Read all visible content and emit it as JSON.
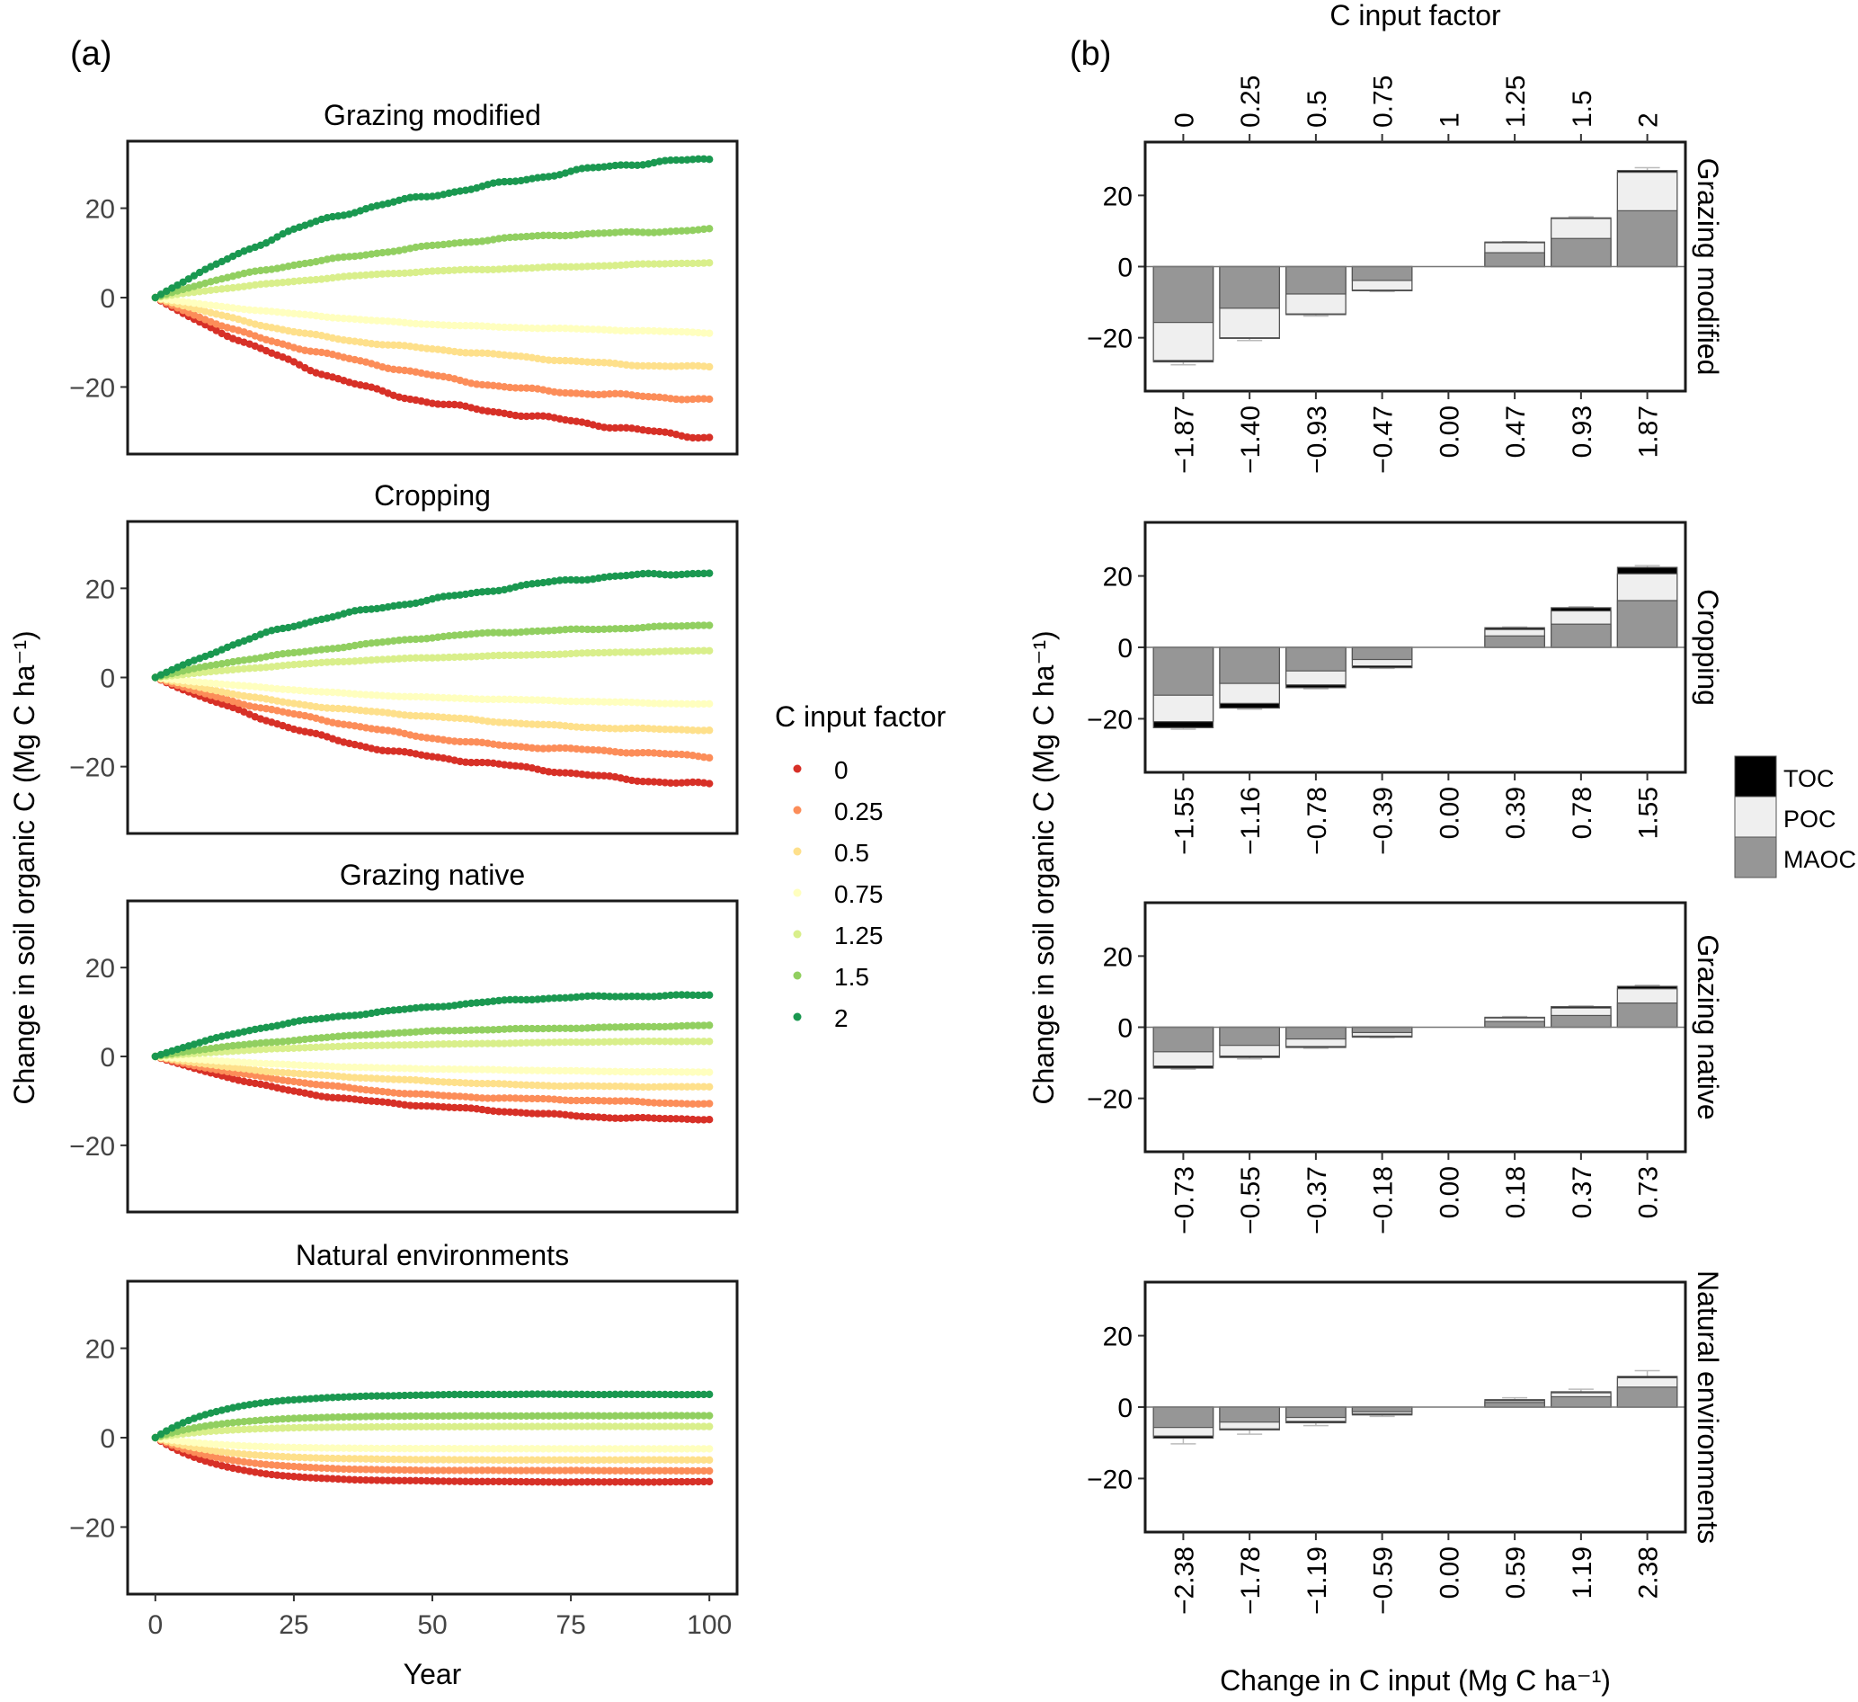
{
  "figure": {
    "panel_a_label": "(a)",
    "panel_b_label": "(b)"
  },
  "chart_data": [
    {
      "type": "scatter",
      "panel": "a",
      "xlabel": "Year",
      "ylabel": "Change in soil organic C (Mg C  ha⁻¹)",
      "xlim": [
        -5,
        105
      ],
      "ylim": [
        -35,
        35
      ],
      "xticks": [
        0,
        25,
        50,
        75,
        100
      ],
      "yticks": [
        -20,
        0,
        20
      ],
      "grid": false,
      "legend": {
        "title": "C input factor",
        "placement": "right",
        "entries": [
          {
            "label": "0",
            "color": "#d73027"
          },
          {
            "label": "0.25",
            "color": "#fc8d59"
          },
          {
            "label": "0.5",
            "color": "#fee08b"
          },
          {
            "label": "0.75",
            "color": "#ffffbf"
          },
          {
            "label": "1.25",
            "color": "#d9ef8b"
          },
          {
            "label": "1.5",
            "color": "#91cf60"
          },
          {
            "label": "2",
            "color": "#1a9850"
          }
        ]
      },
      "years": {
        "start": 0,
        "end": 100,
        "step": 1
      },
      "facets": [
        {
          "title": "Grazing modified",
          "shape": "slow",
          "series": [
            {
              "name": "0",
              "end_value": -30.8
            },
            {
              "name": "0.25",
              "end_value": -23.2
            },
            {
              "name": "0.5",
              "end_value": -15.5
            },
            {
              "name": "0.75",
              "end_value": -7.8
            },
            {
              "name": "1.25",
              "end_value": 7.7
            },
            {
              "name": "1.5",
              "end_value": 15.4
            },
            {
              "name": "2",
              "end_value": 30.8
            }
          ]
        },
        {
          "title": "Cropping",
          "shape": "slow",
          "series": [
            {
              "name": "0",
              "end_value": -23.7
            },
            {
              "name": "0.25",
              "end_value": -17.8
            },
            {
              "name": "0.5",
              "end_value": -11.9
            },
            {
              "name": "0.75",
              "end_value": -5.9
            },
            {
              "name": "1.25",
              "end_value": 5.9
            },
            {
              "name": "1.5",
              "end_value": 11.8
            },
            {
              "name": "2",
              "end_value": 23.7
            }
          ]
        },
        {
          "title": "Grazing native",
          "shape": "medium",
          "series": [
            {
              "name": "0",
              "end_value": -14.1
            },
            {
              "name": "0.25",
              "end_value": -10.6
            },
            {
              "name": "0.5",
              "end_value": -7.0
            },
            {
              "name": "0.75",
              "end_value": -3.5
            },
            {
              "name": "1.25",
              "end_value": 3.4
            },
            {
              "name": "1.5",
              "end_value": 6.9
            },
            {
              "name": "2",
              "end_value": 14.0
            }
          ]
        },
        {
          "title": "Natural environments",
          "shape": "fast",
          "series": [
            {
              "name": "0",
              "end_value": -9.9
            },
            {
              "name": "0.25",
              "end_value": -7.4
            },
            {
              "name": "0.5",
              "end_value": -5.0
            },
            {
              "name": "0.75",
              "end_value": -2.5
            },
            {
              "name": "1.25",
              "end_value": 2.5
            },
            {
              "name": "1.5",
              "end_value": 4.9
            },
            {
              "name": "2",
              "end_value": 9.7
            }
          ]
        }
      ]
    },
    {
      "type": "bar",
      "panel": "b",
      "stacked": true,
      "top_axis_label": "C input factor",
      "xlabel": "Change in C input (Mg C  ha⁻¹)",
      "ylabel": "Change in soil organic C (Mg C  ha⁻¹)",
      "ylim": [
        -35,
        35
      ],
      "yticks": [
        -20,
        0,
        20
      ],
      "grid": false,
      "categories": [
        "0",
        "0.25",
        "0.5",
        "0.75",
        "1",
        "1.25",
        "1.5",
        "2"
      ],
      "legend": {
        "placement": "right",
        "entries": [
          {
            "label": "TOC",
            "color": "#000000"
          },
          {
            "label": "POC",
            "color": "#efefef"
          },
          {
            "label": "MAOC",
            "color": "#969696"
          }
        ]
      },
      "facets": [
        {
          "title": "Grazing modified",
          "bottom_tick_labels": [
            "−1.87",
            "−1.40",
            "−0.93",
            "−0.47",
            "0.00",
            "0.47",
            "0.93",
            "1.87"
          ],
          "series": [
            {
              "name": "MAOC",
              "values": [
                -15.7,
                -11.7,
                -7.7,
                -3.9,
                0,
                3.9,
                7.9,
                15.7
              ]
            },
            {
              "name": "POC",
              "values": [
                -26.4,
                -20.0,
                -13.3,
                -6.6,
                0,
                6.7,
                13.5,
                26.5
              ]
            },
            {
              "name": "TOC",
              "values": [
                -26.8,
                -20.2,
                -13.5,
                -6.8,
                0,
                6.9,
                13.7,
                27.0
              ]
            }
          ],
          "error_top": [
            -27.6,
            -20.8,
            -13.9,
            -7.0,
            0,
            7.0,
            14.0,
            27.8
          ]
        },
        {
          "title": "Cropping",
          "bottom_tick_labels": [
            "−1.55",
            "−1.16",
            "−0.78",
            "−0.39",
            "0.00",
            "0.39",
            "0.78",
            "1.55"
          ],
          "series": [
            {
              "name": "MAOC",
              "values": [
                -13.4,
                -10.1,
                -6.6,
                -3.4,
                0,
                3.2,
                6.5,
                13.1
              ]
            },
            {
              "name": "POC",
              "values": [
                -20.8,
                -15.7,
                -10.5,
                -5.2,
                0,
                5.0,
                10.2,
                20.6
              ]
            },
            {
              "name": "TOC",
              "values": [
                -22.5,
                -17.0,
                -11.3,
                -5.7,
                0,
                5.5,
                11.1,
                22.4
              ]
            }
          ],
          "error_top": [
            -22.9,
            -17.3,
            -11.6,
            -5.9,
            0,
            5.7,
            11.4,
            22.9
          ]
        },
        {
          "title": "Grazing native",
          "bottom_tick_labels": [
            "−0.73",
            "−0.55",
            "−0.37",
            "−0.18",
            "0.00",
            "0.18",
            "0.37",
            "0.73"
          ],
          "series": [
            {
              "name": "MAOC",
              "values": [
                -6.9,
                -5.1,
                -3.3,
                -1.5,
                0,
                1.6,
                3.3,
                6.8
              ]
            },
            {
              "name": "POC",
              "values": [
                -10.9,
                -8.1,
                -5.4,
                -2.5,
                0,
                2.6,
                5.4,
                10.8
              ]
            },
            {
              "name": "TOC",
              "values": [
                -11.5,
                -8.5,
                -5.7,
                -2.8,
                0,
                2.8,
                5.8,
                11.5
              ]
            }
          ],
          "error_top": [
            -11.8,
            -8.9,
            -5.9,
            -2.9,
            0,
            3.0,
            6.0,
            11.8
          ]
        },
        {
          "title": "Natural environments",
          "bottom_tick_labels": [
            "−2.38",
            "−1.78",
            "−1.19",
            "−0.59",
            "0.00",
            "0.59",
            "1.19",
            "2.38"
          ],
          "series": [
            {
              "name": "MAOC",
              "values": [
                -5.7,
                -4.2,
                -2.9,
                -1.3,
                0,
                1.3,
                2.9,
                5.6
              ]
            },
            {
              "name": "POC",
              "values": [
                -8.1,
                -6.1,
                -4.0,
                -1.9,
                0,
                1.8,
                4.0,
                8.2
              ]
            },
            {
              "name": "TOC",
              "values": [
                -8.7,
                -6.4,
                -4.4,
                -2.2,
                0,
                2.1,
                4.3,
                8.6
              ]
            }
          ],
          "error_top": [
            -10.3,
            -7.6,
            -5.2,
            -2.6,
            0,
            2.6,
            5.0,
            10.2
          ]
        }
      ]
    }
  ]
}
